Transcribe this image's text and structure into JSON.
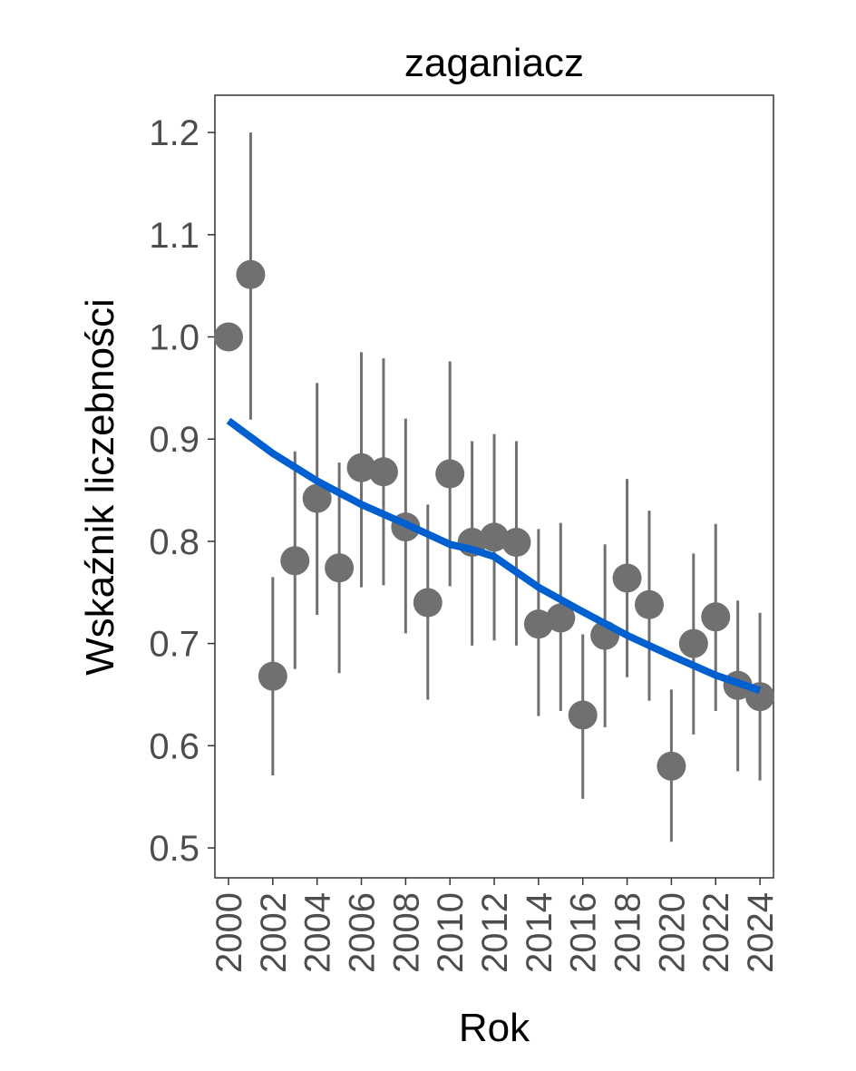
{
  "chart_data": {
    "type": "scatter",
    "title": "zaganiacz",
    "xlabel": "Rok",
    "ylabel": "Wskaźnik liczebności",
    "ylim": [
      0.47,
      1.235
    ],
    "xlim": [
      1999.4,
      2024.6
    ],
    "y_ticks": [
      "0.5",
      "0.6",
      "0.7",
      "0.8",
      "0.9",
      "1.0",
      "1.1",
      "1.2"
    ],
    "x_ticks": [
      "2000",
      "2002",
      "2004",
      "2006",
      "2008",
      "2010",
      "2012",
      "2014",
      "2016",
      "2018",
      "2020",
      "2022",
      "2024"
    ],
    "colors": {
      "points": "#707070",
      "trend": "#0060d0"
    },
    "points": [
      {
        "x": 2000,
        "y": 1.0,
        "lo": null,
        "hi": null
      },
      {
        "x": 2001,
        "y": 1.061,
        "lo": 0.919,
        "hi": 1.2
      },
      {
        "x": 2002,
        "y": 0.668,
        "lo": 0.571,
        "hi": 0.765
      },
      {
        "x": 2003,
        "y": 0.781,
        "lo": 0.675,
        "hi": 0.888
      },
      {
        "x": 2004,
        "y": 0.842,
        "lo": 0.728,
        "hi": 0.955
      },
      {
        "x": 2005,
        "y": 0.774,
        "lo": 0.671,
        "hi": 0.877
      },
      {
        "x": 2006,
        "y": 0.872,
        "lo": 0.755,
        "hi": 0.985
      },
      {
        "x": 2007,
        "y": 0.868,
        "lo": 0.757,
        "hi": 0.979
      },
      {
        "x": 2008,
        "y": 0.814,
        "lo": 0.71,
        "hi": 0.92
      },
      {
        "x": 2009,
        "y": 0.74,
        "lo": 0.645,
        "hi": 0.836
      },
      {
        "x": 2010,
        "y": 0.866,
        "lo": 0.756,
        "hi": 0.976
      },
      {
        "x": 2011,
        "y": 0.799,
        "lo": 0.698,
        "hi": 0.898
      },
      {
        "x": 2012,
        "y": 0.804,
        "lo": 0.703,
        "hi": 0.905
      },
      {
        "x": 2013,
        "y": 0.799,
        "lo": 0.698,
        "hi": 0.898
      },
      {
        "x": 2014,
        "y": 0.719,
        "lo": 0.629,
        "hi": 0.812
      },
      {
        "x": 2015,
        "y": 0.725,
        "lo": 0.634,
        "hi": 0.818
      },
      {
        "x": 2016,
        "y": 0.63,
        "lo": 0.548,
        "hi": 0.709
      },
      {
        "x": 2017,
        "y": 0.708,
        "lo": 0.618,
        "hi": 0.797
      },
      {
        "x": 2018,
        "y": 0.764,
        "lo": 0.667,
        "hi": 0.861
      },
      {
        "x": 2019,
        "y": 0.738,
        "lo": 0.644,
        "hi": 0.83
      },
      {
        "x": 2020,
        "y": 0.58,
        "lo": 0.506,
        "hi": 0.655
      },
      {
        "x": 2021,
        "y": 0.7,
        "lo": 0.611,
        "hi": 0.788
      },
      {
        "x": 2022,
        "y": 0.726,
        "lo": 0.634,
        "hi": 0.817
      },
      {
        "x": 2023,
        "y": 0.659,
        "lo": 0.575,
        "hi": 0.742
      },
      {
        "x": 2024,
        "y": 0.648,
        "lo": 0.566,
        "hi": 0.73
      }
    ],
    "trend": [
      {
        "x": 2000,
        "y": 0.918
      },
      {
        "x": 2002,
        "y": 0.886
      },
      {
        "x": 2004,
        "y": 0.859
      },
      {
        "x": 2006,
        "y": 0.836
      },
      {
        "x": 2008,
        "y": 0.817
      },
      {
        "x": 2010,
        "y": 0.797
      },
      {
        "x": 2011,
        "y": 0.792
      },
      {
        "x": 2012,
        "y": 0.785
      },
      {
        "x": 2014,
        "y": 0.755
      },
      {
        "x": 2016,
        "y": 0.731
      },
      {
        "x": 2018,
        "y": 0.708
      },
      {
        "x": 2020,
        "y": 0.688
      },
      {
        "x": 2022,
        "y": 0.669
      },
      {
        "x": 2024,
        "y": 0.654
      }
    ]
  }
}
